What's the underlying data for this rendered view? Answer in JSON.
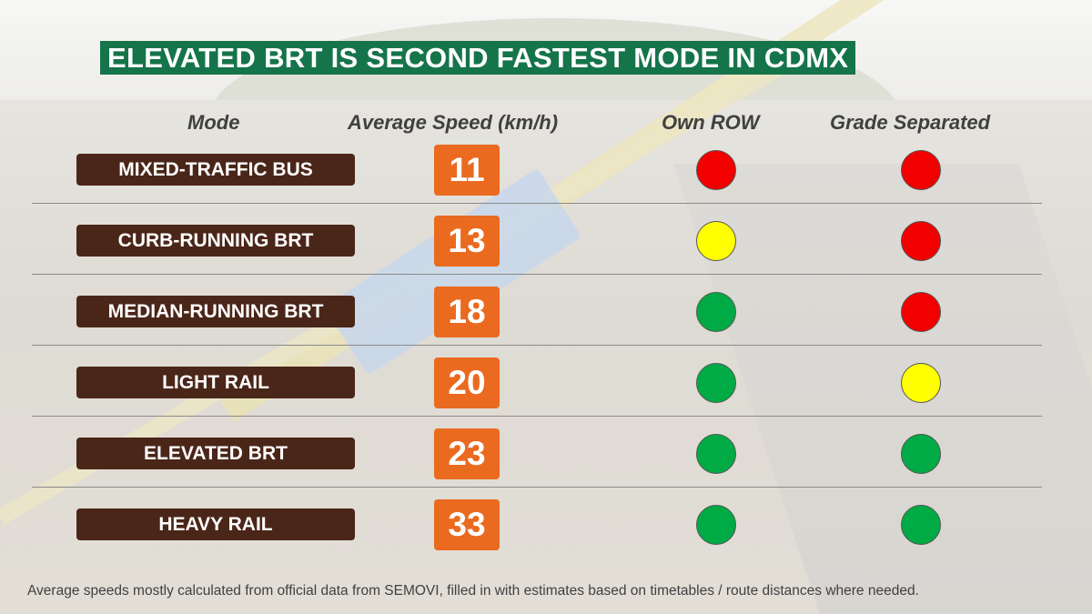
{
  "title": "ELEVATED BRT IS SECOND FASTEST MODE IN CDMX",
  "headers": {
    "mode": "Mode",
    "speed": "Average Speed (km/h)",
    "own_row": "Own ROW",
    "grade_separated": "Grade Separated"
  },
  "colors": {
    "title_bg": "#15744a",
    "mode_pill": "#4a2619",
    "speed_box": "#ea6a1f",
    "red": "#f20000",
    "yellow": "#ffff00",
    "green": "#00aa44"
  },
  "chart_data": {
    "type": "table",
    "title": "ELEVATED BRT IS SECOND FASTEST MODE IN CDMX",
    "columns": [
      "Mode",
      "Average Speed (km/h)",
      "Own ROW",
      "Grade Separated"
    ],
    "rows": [
      {
        "mode": "MIXED-TRAFFIC BUS",
        "speed": "11",
        "own_row": "red",
        "grade_separated": "red"
      },
      {
        "mode": "CURB-RUNNING BRT",
        "speed": "13",
        "own_row": "yellow",
        "grade_separated": "red"
      },
      {
        "mode": "MEDIAN-RUNNING BRT",
        "speed": "18",
        "own_row": "green",
        "grade_separated": "red"
      },
      {
        "mode": "LIGHT RAIL",
        "speed": "20",
        "own_row": "green",
        "grade_separated": "yellow"
      },
      {
        "mode": "ELEVATED BRT",
        "speed": "23",
        "own_row": "green",
        "grade_separated": "green"
      },
      {
        "mode": "HEAVY RAIL",
        "speed": "33",
        "own_row": "green",
        "grade_separated": "green"
      }
    ]
  },
  "footnote": "Average speeds mostly calculated from official data from SEMOVI, filled in with estimates based on timetables / route distances where needed."
}
